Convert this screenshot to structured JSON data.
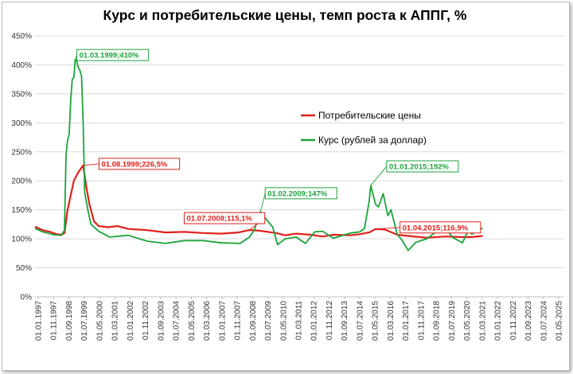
{
  "chart_data": {
    "type": "line",
    "title": "Курс и потребительские цены, темп роста к АППГ, %",
    "xlabel": "",
    "ylabel": "",
    "ylim": [
      0,
      450
    ],
    "y_ticks": [
      "0%",
      "50%",
      "100%",
      "150%",
      "200%",
      "250%",
      "300%",
      "350%",
      "400%",
      "450%"
    ],
    "x_start": "1997-01-01",
    "x_end": "2025-05-01",
    "x_tick_labels": [
      "01.01.1997",
      "01.11.1997",
      "01.09.1998",
      "01.07.1999",
      "01.05.2000",
      "01.03.2001",
      "01.01.2002",
      "01.11.2002",
      "01.09.2003",
      "01.07.2004",
      "01.05.2005",
      "01.03.2006",
      "01.01.2007",
      "01.11.2007",
      "01.09.2008",
      "01.07.2009",
      "01.05.2010",
      "01.03.2011",
      "01.01.2012",
      "01.11.2012",
      "01.09.2013",
      "01.07.2014",
      "01.05.2015",
      "01.03.2016",
      "01.01.2017",
      "01.11.2017",
      "01.09.2018",
      "01.07.2019",
      "01.05.2020",
      "01.03.2021",
      "01.01.2022",
      "01.11.2022",
      "01.09.2023",
      "01.07.2024",
      "01.05.2025"
    ],
    "grid": true,
    "legend_position": "center-right",
    "series": [
      {
        "name": "Потребительские цены",
        "color": "#e0201b",
        "points": [
          [
            "1997-01-01",
            121
          ],
          [
            "1997-06-01",
            115
          ],
          [
            "1997-12-01",
            111
          ],
          [
            "1998-03-01",
            108
          ],
          [
            "1998-06-01",
            107
          ],
          [
            "1998-08-01",
            110
          ],
          [
            "1998-10-01",
            150
          ],
          [
            "1998-12-01",
            175
          ],
          [
            "1999-02-01",
            200
          ],
          [
            "1999-05-01",
            215
          ],
          [
            "1999-08-01",
            226.5
          ],
          [
            "1999-10-01",
            190
          ],
          [
            "1999-12-01",
            160
          ],
          [
            "2000-03-01",
            130
          ],
          [
            "2000-06-01",
            122
          ],
          [
            "2000-12-01",
            120
          ],
          [
            "2001-06-01",
            122
          ],
          [
            "2002-01-01",
            117
          ],
          [
            "2003-01-01",
            115
          ],
          [
            "2004-01-01",
            111
          ],
          [
            "2005-01-01",
            112
          ],
          [
            "2006-01-01",
            110
          ],
          [
            "2007-01-01",
            109
          ],
          [
            "2007-12-01",
            111
          ],
          [
            "2008-07-01",
            115.1
          ],
          [
            "2009-01-01",
            114
          ],
          [
            "2009-12-01",
            110
          ],
          [
            "2010-06-01",
            106
          ],
          [
            "2011-01-01",
            109
          ],
          [
            "2011-10-01",
            107
          ],
          [
            "2012-06-01",
            104
          ],
          [
            "2013-01-01",
            107
          ],
          [
            "2013-12-01",
            106
          ],
          [
            "2014-06-01",
            108
          ],
          [
            "2014-12-01",
            111
          ],
          [
            "2015-04-01",
            116.9
          ],
          [
            "2015-10-01",
            116
          ],
          [
            "2016-06-01",
            107
          ],
          [
            "2017-01-01",
            105
          ],
          [
            "2018-01-01",
            102
          ],
          [
            "2019-01-01",
            104
          ],
          [
            "2019-12-01",
            103
          ],
          [
            "2020-06-01",
            103
          ],
          [
            "2021-01-01",
            105
          ]
        ]
      },
      {
        "name": "Курс (рублей за доллар)",
        "color": "#1ca33b",
        "points": [
          [
            "1997-01-01",
            118
          ],
          [
            "1997-06-01",
            112
          ],
          [
            "1998-01-01",
            107
          ],
          [
            "1998-06-01",
            106
          ],
          [
            "1998-08-01",
            115
          ],
          [
            "1998-09-01",
            245
          ],
          [
            "1998-10-01",
            270
          ],
          [
            "1998-11-01",
            280
          ],
          [
            "1998-12-01",
            340
          ],
          [
            "1999-01-01",
            375
          ],
          [
            "1999-02-01",
            378
          ],
          [
            "1999-03-01",
            410
          ],
          [
            "1999-04-01",
            405
          ],
          [
            "1999-05-01",
            395
          ],
          [
            "1999-06-01",
            390
          ],
          [
            "1999-07-01",
            380
          ],
          [
            "1999-08-01",
            300
          ],
          [
            "1999-09-01",
            180
          ],
          [
            "1999-11-01",
            150
          ],
          [
            "2000-01-01",
            125
          ],
          [
            "2000-06-01",
            113
          ],
          [
            "2001-01-01",
            103
          ],
          [
            "2002-01-01",
            106
          ],
          [
            "2003-01-01",
            96
          ],
          [
            "2004-01-01",
            92
          ],
          [
            "2005-01-01",
            97
          ],
          [
            "2006-01-01",
            97
          ],
          [
            "2007-01-01",
            93
          ],
          [
            "2008-01-01",
            92
          ],
          [
            "2008-07-01",
            103
          ],
          [
            "2008-10-01",
            115
          ],
          [
            "2009-02-01",
            147
          ],
          [
            "2009-06-01",
            133
          ],
          [
            "2009-10-01",
            120
          ],
          [
            "2010-01-01",
            90
          ],
          [
            "2010-06-01",
            100
          ],
          [
            "2011-01-01",
            103
          ],
          [
            "2011-07-01",
            92
          ],
          [
            "2012-01-01",
            112
          ],
          [
            "2012-06-01",
            113
          ],
          [
            "2013-01-01",
            101
          ],
          [
            "2013-12-01",
            110
          ],
          [
            "2014-06-01",
            112
          ],
          [
            "2014-09-01",
            118
          ],
          [
            "2014-12-01",
            165
          ],
          [
            "2015-01-01",
            192
          ],
          [
            "2015-04-01",
            160
          ],
          [
            "2015-06-01",
            155
          ],
          [
            "2015-09-01",
            178
          ],
          [
            "2015-12-01",
            140
          ],
          [
            "2016-02-01",
            150
          ],
          [
            "2016-06-01",
            108
          ],
          [
            "2016-09-01",
            98
          ],
          [
            "2017-01-01",
            80
          ],
          [
            "2017-06-01",
            94
          ],
          [
            "2018-01-01",
            100
          ],
          [
            "2018-06-01",
            110
          ],
          [
            "2019-01-01",
            118
          ],
          [
            "2019-06-01",
            102
          ],
          [
            "2019-12-01",
            93
          ],
          [
            "2020-04-01",
            116
          ],
          [
            "2020-06-01",
            108
          ],
          [
            "2020-12-01",
            118
          ],
          [
            "2021-01-01",
            117
          ]
        ]
      }
    ],
    "annotations": [
      {
        "text": "01.03.1999;410%",
        "date": "1999-03-01",
        "value": 410,
        "series": 1
      },
      {
        "text": "01.08.1999;226,5%",
        "date": "1999-08-01",
        "value": 226.5,
        "series": 0
      },
      {
        "text": "01.07.2008;115,1%",
        "date": "2008-07-01",
        "value": 115.1,
        "series": 0
      },
      {
        "text": "01.02.2009;147%",
        "date": "2009-02-01",
        "value": 147,
        "series": 1
      },
      {
        "text": "01.01.2015;192%",
        "date": "2015-01-01",
        "value": 192,
        "series": 1
      },
      {
        "text": "01.04.2015;116,9%",
        "date": "2015-04-01",
        "value": 116.9,
        "series": 0
      }
    ]
  }
}
